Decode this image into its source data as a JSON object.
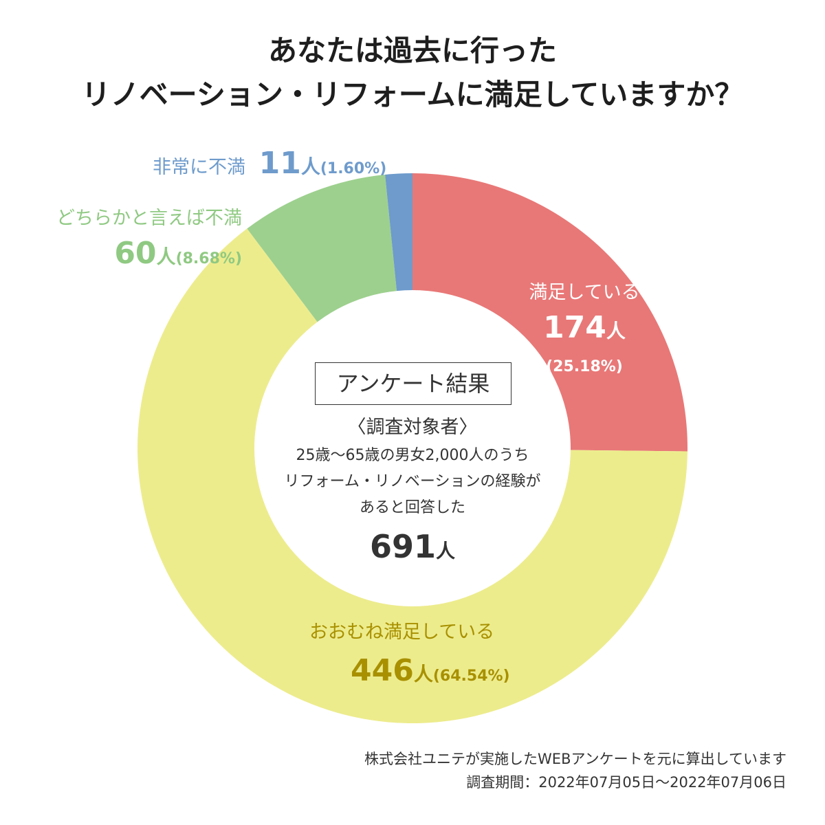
{
  "title": {
    "line1": "あなたは過去に行った",
    "line2": "リノベーション・リフォームに満足していますか？"
  },
  "colors": {
    "satisfied": "#e87877",
    "mostly_satisfied": "#edec8d",
    "somewhat_dissatisfied": "#9dd08e",
    "very_dissatisfied": "#6e9bcc",
    "mostly_label": "#a89000",
    "green_label": "#8fc982",
    "blue_label": "#6e9bcc"
  },
  "chart_data": {
    "type": "pie",
    "categories": [
      "満足している",
      "おおむね満足している",
      "どちらかと言えば不満",
      "非常に不満"
    ],
    "counts": [
      174,
      446,
      60,
      11
    ],
    "percents": [
      25.18,
      64.54,
      8.68,
      1.6
    ],
    "labels": [
      {
        "name": "満足している",
        "count": "174",
        "unit": "人",
        "pct": "(25.18%)"
      },
      {
        "name": "おおむね満足している",
        "count": "446",
        "unit": "人",
        "pct": "(64.54%)"
      },
      {
        "name": "どちらかと言えば不満",
        "count": "60",
        "unit": "人",
        "pct": "(8.68%)"
      },
      {
        "name": "非常に不満",
        "count": "11",
        "unit": "人",
        "pct": "(1.60%)"
      }
    ]
  },
  "center": {
    "box_title": "アンケート結果",
    "subject_heading": "〈調査対象者〉",
    "line1": "25歳〜65歳の男女2,000人のうち",
    "line2": "リフォーム・リノベーションの経験が",
    "line3": "あると回答した",
    "total_count": "691",
    "total_unit": "人"
  },
  "footer": {
    "line1": "株式会社ユニテが実施したWEBアンケートを元に算出しています",
    "line2": "調査期間：2022年07月05日〜2022年07月06日"
  }
}
